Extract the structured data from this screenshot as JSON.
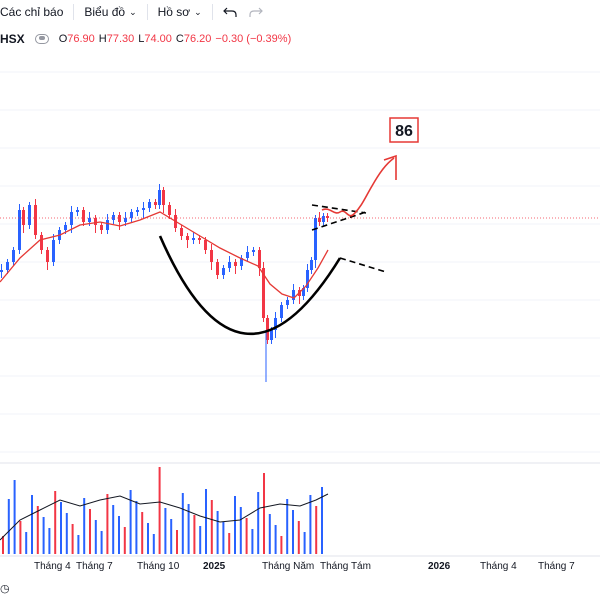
{
  "toolbar": {
    "indicators_label": "Các chỉ báo",
    "chart_label": "Biểu đồ",
    "profile_label": "Hồ sơ",
    "undo_icon": "undo-icon",
    "redo_icon": "redo-icon"
  },
  "legend": {
    "symbol": "HSX",
    "o_label": "O",
    "o_value": "76.90",
    "h_label": "H",
    "h_value": "77.30",
    "l_label": "L",
    "l_value": "74.00",
    "c_label": "C",
    "c_value": "76.20",
    "change": "−0.30 (−0.39%)",
    "down_color": "#f23645"
  },
  "annotation": {
    "target_label": "86"
  },
  "colors": {
    "up": "#2962ff",
    "down": "#f23645",
    "ma": "#e53935",
    "pattern": "#000000",
    "arrow": "#e53935",
    "grid": "#f0f3fa"
  },
  "x_axis": {
    "labels": [
      "Tháng 4",
      "Tháng 7",
      "Tháng 10",
      "2025",
      "Tháng Năm",
      "Tháng Tám",
      "2026",
      "Tháng 4",
      "Tháng 7"
    ]
  }
}
